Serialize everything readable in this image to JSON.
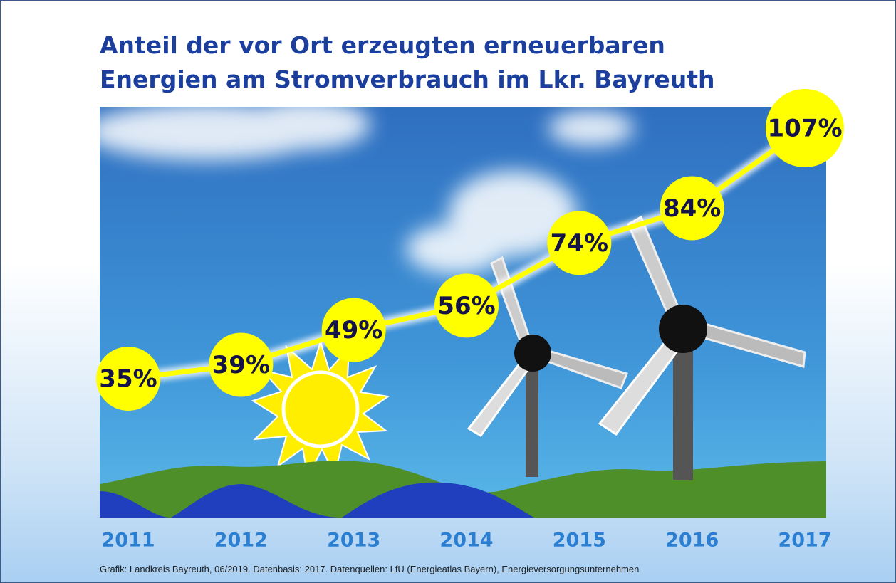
{
  "chart_data": {
    "type": "line",
    "title": "Anteil der vor Ort erzeugten erneuerbaren Energien am Stromverbrauch im Lkr. Bayreuth",
    "categories": [
      "2011",
      "2012",
      "2013",
      "2014",
      "2015",
      "2016",
      "2017"
    ],
    "values": [
      35,
      39,
      49,
      56,
      74,
      84,
      107
    ],
    "value_labels": [
      "35%",
      "39%",
      "49%",
      "56%",
      "74%",
      "84%",
      "107%"
    ],
    "color": "#ffff00",
    "source": "Grafik: Landkreis Bayreuth, 06/2019. Datenbasis: 2017. Datenquellen: LfU (Energieatlas Bayern), Energieversorgungsunternehmen"
  }
}
